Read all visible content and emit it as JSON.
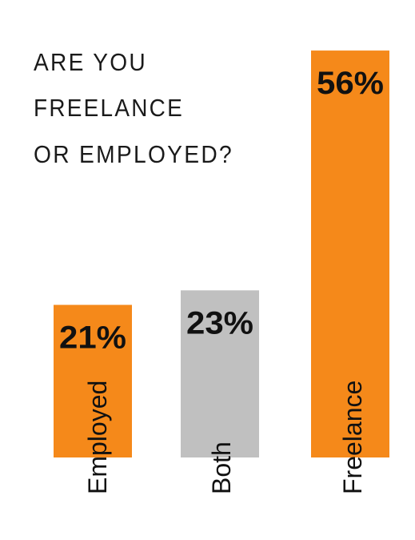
{
  "chart_data": {
    "type": "bar",
    "title_lines": [
      "ARE YOU",
      "FREELANCE",
      "OR EMPLOYED?"
    ],
    "categories": [
      "Employed",
      "Both",
      "Freelance"
    ],
    "values": [
      21,
      23,
      56
    ],
    "value_labels": [
      "21%",
      "23%",
      "56%"
    ],
    "colors": [
      "#f5891a",
      "#c0c0c0",
      "#f5891a"
    ],
    "grid": false,
    "legend": "none"
  }
}
